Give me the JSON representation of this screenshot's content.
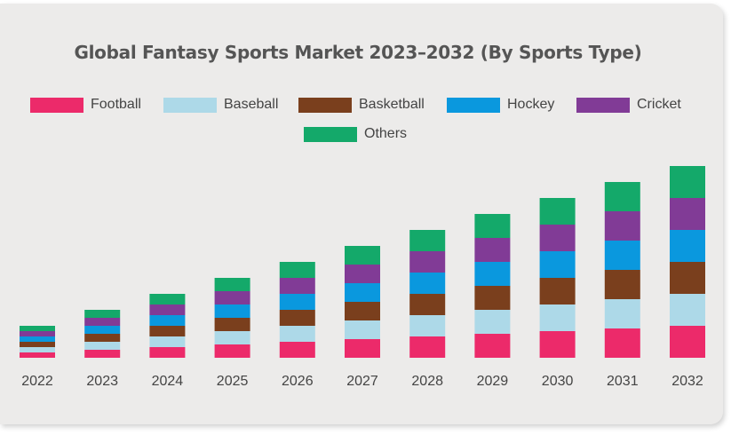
{
  "colors": {
    "Football": "#ec2a6a",
    "Baseball": "#add9e8",
    "Basketball": "#7a3f1d",
    "Hockey": "#0a98de",
    "Cricket": "#813b96",
    "Others": "#14a96a"
  },
  "chart_data": {
    "type": "bar",
    "stacked": true,
    "title": "Global Fantasy Sports Market 2023–2032 (By Sports Type)",
    "xlabel": "",
    "ylabel": "",
    "y_axis_visible": false,
    "grid": false,
    "legend_position": "top",
    "categories": [
      "2022",
      "2023",
      "2024",
      "2025",
      "2026",
      "2027",
      "2028",
      "2029",
      "2030",
      "2031",
      "2032"
    ],
    "series": [
      {
        "name": "Football",
        "values": [
          6,
          9,
          12,
          15,
          18,
          21,
          24,
          27,
          30,
          33,
          36
        ]
      },
      {
        "name": "Baseball",
        "values": [
          6,
          9,
          12,
          15,
          18,
          21,
          24,
          27,
          30,
          33,
          36
        ]
      },
      {
        "name": "Basketball",
        "values": [
          6,
          9,
          12,
          15,
          18,
          21,
          24,
          27,
          30,
          33,
          36
        ]
      },
      {
        "name": "Hockey",
        "values": [
          6,
          9,
          12,
          15,
          18,
          21,
          24,
          27,
          30,
          33,
          36
        ]
      },
      {
        "name": "Cricket",
        "values": [
          6,
          9,
          12,
          15,
          18,
          21,
          24,
          27,
          30,
          33,
          36
        ]
      },
      {
        "name": "Others",
        "values": [
          6,
          9,
          12,
          15,
          18,
          21,
          24,
          27,
          30,
          33,
          36
        ]
      }
    ],
    "ylim": [
      0,
      230
    ]
  }
}
